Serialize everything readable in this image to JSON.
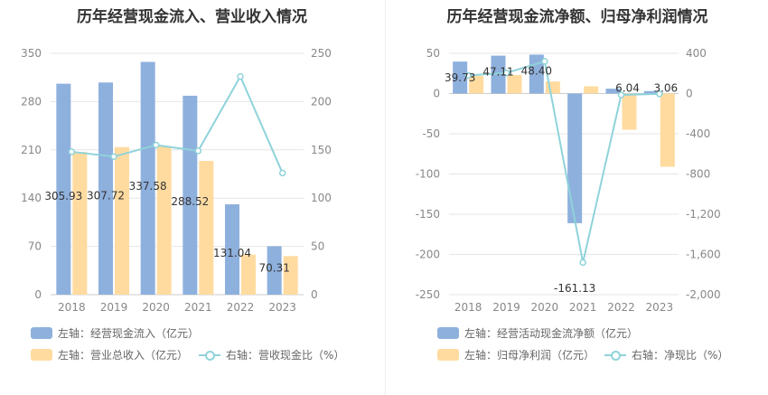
{
  "charts": [
    {
      "title": "历年经营现金流入、营业收入情况",
      "legend": [
        "左轴：经营现金流入（亿元）",
        "左轴：营业总收入（亿元）",
        "右轴：营收现金比（%）"
      ]
    },
    {
      "title": "历年经营现金流净额、归母净利润情况",
      "legend": [
        "左轴：经营活动现金流净额（亿元）",
        "左轴：归母净利润（亿元）",
        "右轴：净现比（%）"
      ]
    }
  ],
  "chart_data": [
    {
      "type": "bar",
      "title": "历年经营现金流入、营业收入情况",
      "categories": [
        "2018",
        "2019",
        "2020",
        "2021",
        "2022",
        "2023"
      ],
      "series": [
        {
          "name": "左轴：经营现金流入（亿元）",
          "axis": "left",
          "type": "bar",
          "color": "#8eb0dd",
          "values": [
            305.93,
            307.72,
            337.58,
            288.52,
            131.04,
            70.31
          ],
          "labels": [
            "305.93",
            "307.72",
            "337.58",
            "288.52",
            "131.04",
            "70.31"
          ]
        },
        {
          "name": "左轴：营业总收入（亿元）",
          "axis": "left",
          "type": "bar",
          "color": "#ffdba0",
          "values": [
            207,
            214,
            215,
            194,
            58,
            56
          ]
        },
        {
          "name": "右轴：营收现金比（%）",
          "axis": "right",
          "type": "line",
          "color": "#8fd3da",
          "values": [
            148,
            143,
            155,
            149,
            226,
            126
          ]
        }
      ],
      "y_left": {
        "min": 0,
        "max": 350,
        "ticks": [
          0,
          70,
          140,
          210,
          280,
          350
        ]
      },
      "y_right": {
        "min": 0,
        "max": 250,
        "ticks": [
          0,
          50,
          100,
          150,
          200,
          250
        ]
      },
      "legend_position": "bottom",
      "grid": true
    },
    {
      "type": "bar",
      "title": "历年经营现金流净额、归母净利润情况",
      "categories": [
        "2018",
        "2019",
        "2020",
        "2021",
        "2022",
        "2023"
      ],
      "series": [
        {
          "name": "左轴：经营活动现金流净额（亿元）",
          "axis": "left",
          "type": "bar",
          "color": "#8eb0dd",
          "values": [
            39.73,
            47.11,
            48.4,
            -161.13,
            6.04,
            3.06
          ],
          "labels": [
            "39.73",
            "47.11",
            "48.40",
            "-161.13",
            "6.04",
            "3.06"
          ]
        },
        {
          "name": "左轴：归母净利润（亿元）",
          "axis": "left",
          "type": "bar",
          "color": "#ffdba0",
          "values": [
            22,
            23,
            15,
            9,
            -45,
            -91
          ]
        },
        {
          "name": "右轴：净现比（%）",
          "axis": "right",
          "type": "line",
          "color": "#8fd3da",
          "values": [
            181,
            205,
            320,
            -1680,
            -13,
            -3
          ]
        }
      ],
      "y_left": {
        "min": -250,
        "max": 50,
        "ticks": [
          -250,
          -200,
          -150,
          -100,
          -50,
          0,
          50
        ],
        "tick_labels": [
          "-250",
          "-200",
          "-150",
          "-100",
          "-50",
          "0",
          "50"
        ]
      },
      "y_right": {
        "min": -2000,
        "max": 400,
        "ticks": [
          -2000,
          -1600,
          -1200,
          -800,
          -400,
          0,
          400
        ],
        "tick_labels": [
          "-2,000",
          "-1,600",
          "-1,200",
          "-800",
          "-400",
          "0",
          "400"
        ]
      },
      "legend_position": "bottom",
      "grid": true
    }
  ]
}
